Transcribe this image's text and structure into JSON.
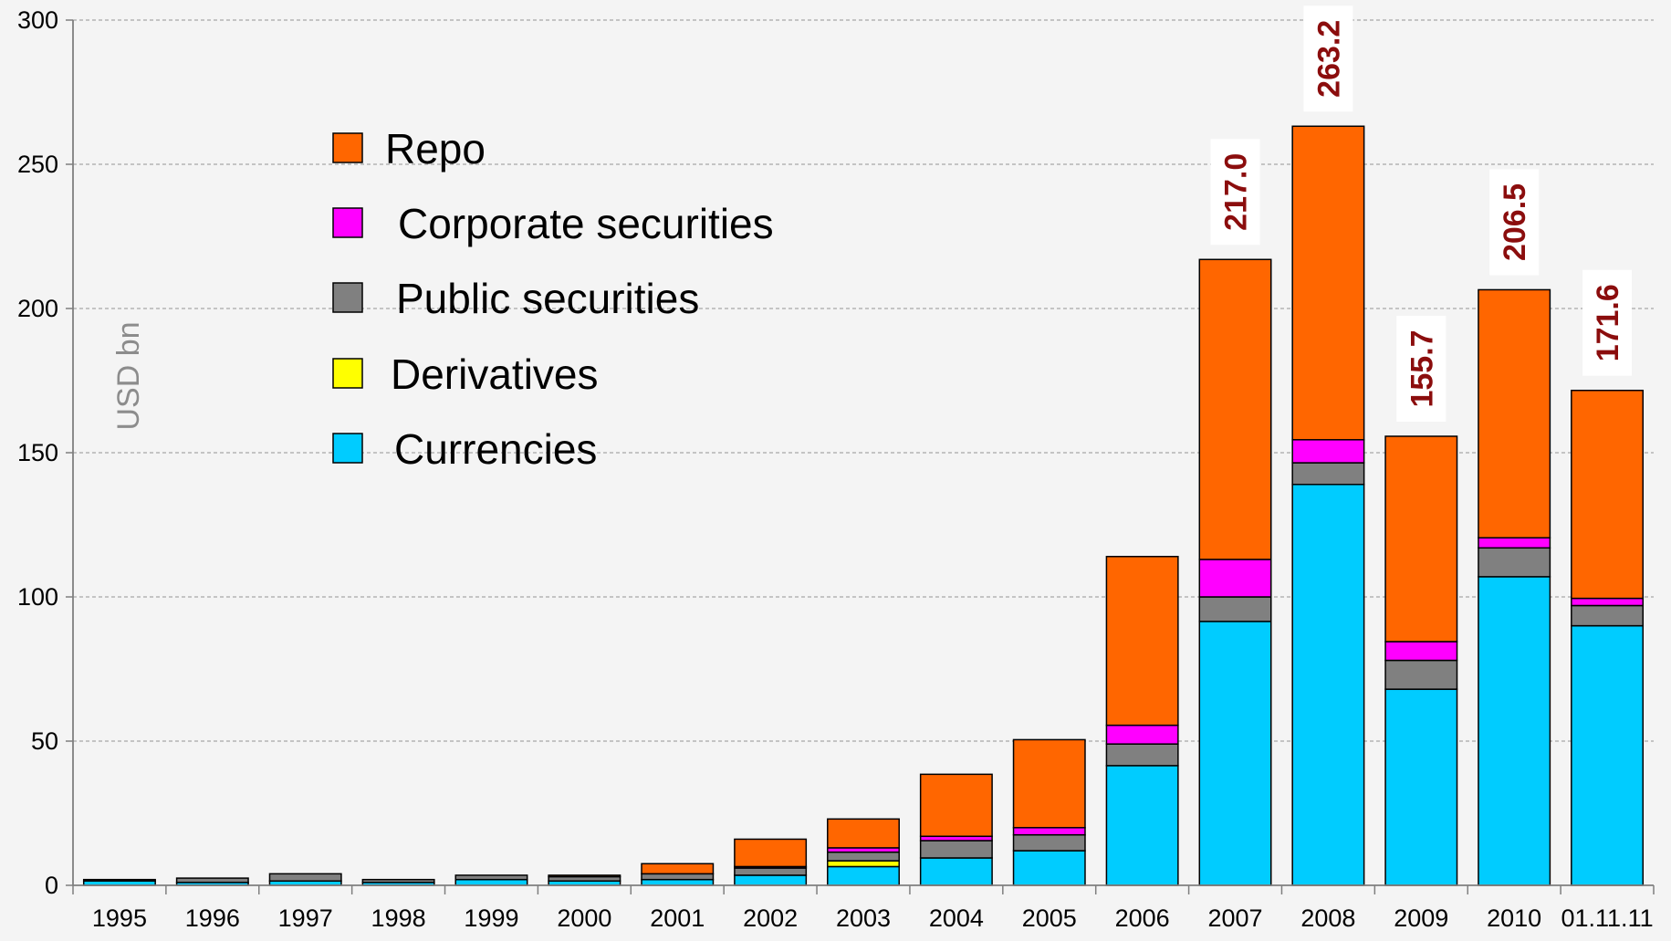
{
  "chart_data": {
    "type": "bar",
    "stacked": true,
    "ylabel": "USD bn",
    "ylim": [
      0,
      300
    ],
    "yticks": [
      0,
      50,
      100,
      150,
      200,
      250,
      300
    ],
    "grid": true,
    "legend_position": "upper-left",
    "categories": [
      "1995",
      "1996",
      "1997",
      "1998",
      "1999",
      "2000",
      "2001",
      "2002",
      "2003",
      "2004",
      "2005",
      "2006",
      "2007",
      "2008",
      "2009",
      "2010",
      "01.11.11"
    ],
    "series": [
      {
        "name": "Currencies",
        "color": "#00ccff",
        "values": [
          1.5,
          1.0,
          1.5,
          1.0,
          2.0,
          1.5,
          2.0,
          3.5,
          6.5,
          9.5,
          12.0,
          41.5,
          91.5,
          139.0,
          68.0,
          107.0,
          90.0
        ]
      },
      {
        "name": "Derivatives",
        "color": "#ffff00",
        "values": [
          0,
          0,
          0,
          0,
          0,
          0,
          0,
          0,
          2.0,
          0,
          0,
          0,
          0,
          0,
          0,
          0,
          0
        ]
      },
      {
        "name": "Public securities",
        "color": "#808080",
        "values": [
          0.5,
          1.5,
          2.5,
          1.0,
          1.5,
          1.5,
          2.0,
          2.5,
          3.0,
          6.0,
          5.5,
          7.5,
          8.5,
          7.5,
          10.0,
          10.0,
          7.0
        ]
      },
      {
        "name": "Corporate securities",
        "color": "#ff00ff",
        "values": [
          0,
          0,
          0,
          0,
          0,
          0,
          0,
          0.5,
          1.5,
          1.5,
          2.5,
          6.5,
          13.0,
          8.0,
          6.5,
          3.5,
          2.5
        ]
      },
      {
        "name": "Repo",
        "color": "#ff6600",
        "values": [
          0,
          0,
          0,
          0,
          0,
          0.5,
          3.5,
          9.5,
          10.0,
          21.5,
          30.5,
          58.5,
          104.0,
          108.7,
          71.2,
          86.0,
          72.1
        ]
      }
    ],
    "totals": [
      {
        "category": "2007",
        "label": "217.0"
      },
      {
        "category": "2008",
        "label": "263.2"
      },
      {
        "category": "2009",
        "label": "155.7"
      },
      {
        "category": "2010",
        "label": "206.5"
      },
      {
        "category": "01.11.11",
        "label": "171.6"
      }
    ],
    "legend_order": [
      "Repo",
      "Corporate securities",
      "Public securities",
      "Derivatives",
      "Currencies"
    ]
  }
}
